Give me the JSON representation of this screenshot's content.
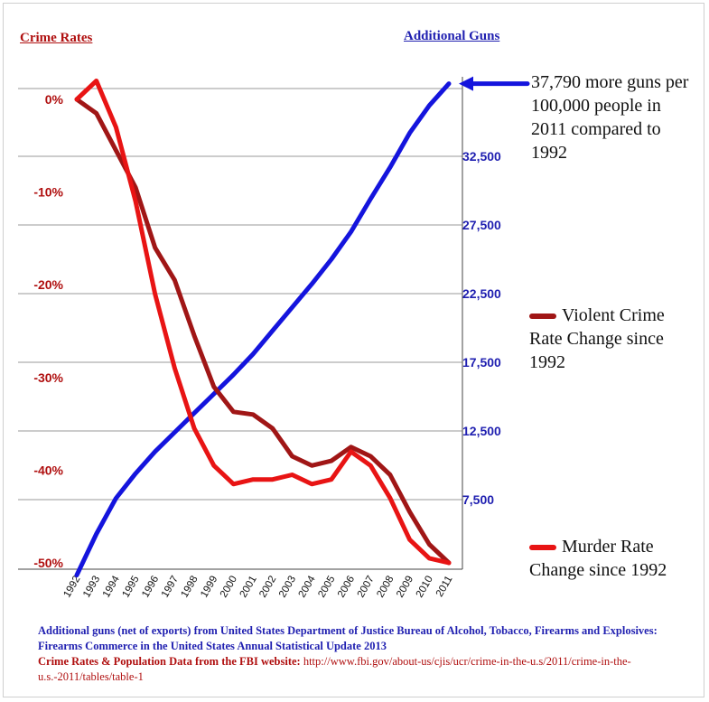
{
  "chart_data": {
    "type": "line",
    "left_axis_title": "Crime Rates",
    "right_axis_title": "Additional Guns",
    "x": [
      "1992",
      "1993",
      "1994",
      "1995",
      "1996",
      "1997",
      "1998",
      "1999",
      "2000",
      "2001",
      "2002",
      "2003",
      "2004",
      "2005",
      "2006",
      "2007",
      "2008",
      "2009",
      "2010",
      "2011"
    ],
    "left_axis": {
      "ticks": [
        0,
        -10,
        -20,
        -30,
        -40,
        -50
      ],
      "tick_labels": [
        "0%",
        "-10%",
        "-20%",
        "-30%",
        "-40%",
        "-50%"
      ],
      "ylim": [
        -50,
        1.5
      ]
    },
    "right_axis": {
      "ticks": [
        7500,
        12500,
        17500,
        22500,
        27500,
        32500
      ],
      "tick_labels": [
        "7,500",
        "12,500",
        "17,500",
        "22,500",
        "27,500",
        "32,500"
      ],
      "ylim": [
        2000,
        37790
      ]
    },
    "grid": true,
    "series": [
      {
        "name": "Violent Crime Rate Change since 1992",
        "axis": "left",
        "color": "#a01616",
        "values": [
          0,
          -1.5,
          -5.5,
          -9.5,
          -16,
          -19.5,
          -25.5,
          -31,
          -33.7,
          -34,
          -35.5,
          -38.5,
          -39.5,
          -39,
          -37.5,
          -38.5,
          -40.5,
          -44.5,
          -48,
          -50
        ]
      },
      {
        "name": "Murder Rate Change since 1992",
        "axis": "left",
        "color": "#e81414",
        "values": [
          0,
          2,
          -3,
          -11,
          -21,
          -29,
          -35.5,
          -39.5,
          -41.5,
          -41,
          -41,
          -40.5,
          -41.5,
          -41,
          -38,
          -39.5,
          -43,
          -47.5,
          -49.5,
          -50
        ]
      },
      {
        "name": "Additional Guns",
        "axis": "right",
        "color": "#1414dd",
        "values": [
          2000,
          5000,
          7600,
          9400,
          11000,
          12400,
          13800,
          15200,
          16600,
          18100,
          19800,
          21500,
          23200,
          25000,
          27000,
          29400,
          31700,
          34200,
          36200,
          37790
        ]
      }
    ]
  },
  "annotations": {
    "guns_callout": "37,790 more guns per 100,000 people in 2011 compared to 1992",
    "legend_violent": "Violent Crime Rate Change since 1992",
    "legend_murder": "Murder Rate Change since 1992"
  },
  "source": {
    "line1": "Additional guns (net of exports) from United States Department of Justice Bureau of Alcohol, Tobacco, Firearms and Explosives: Firearms Commerce in the United States Annual Statistical Update 2013",
    "line2_label": "Crime Rates & Population Data from the FBI website:",
    "line2_url": "http://www.fbi.gov/about-us/cjis/ucr/crime-in-the-u.s/2011/crime-in-the-u.s.-2011/tables/table-1"
  },
  "colors": {
    "left_axis": "#b01010",
    "right_axis": "#1f1fb0",
    "grid": "#9a9a9a"
  }
}
